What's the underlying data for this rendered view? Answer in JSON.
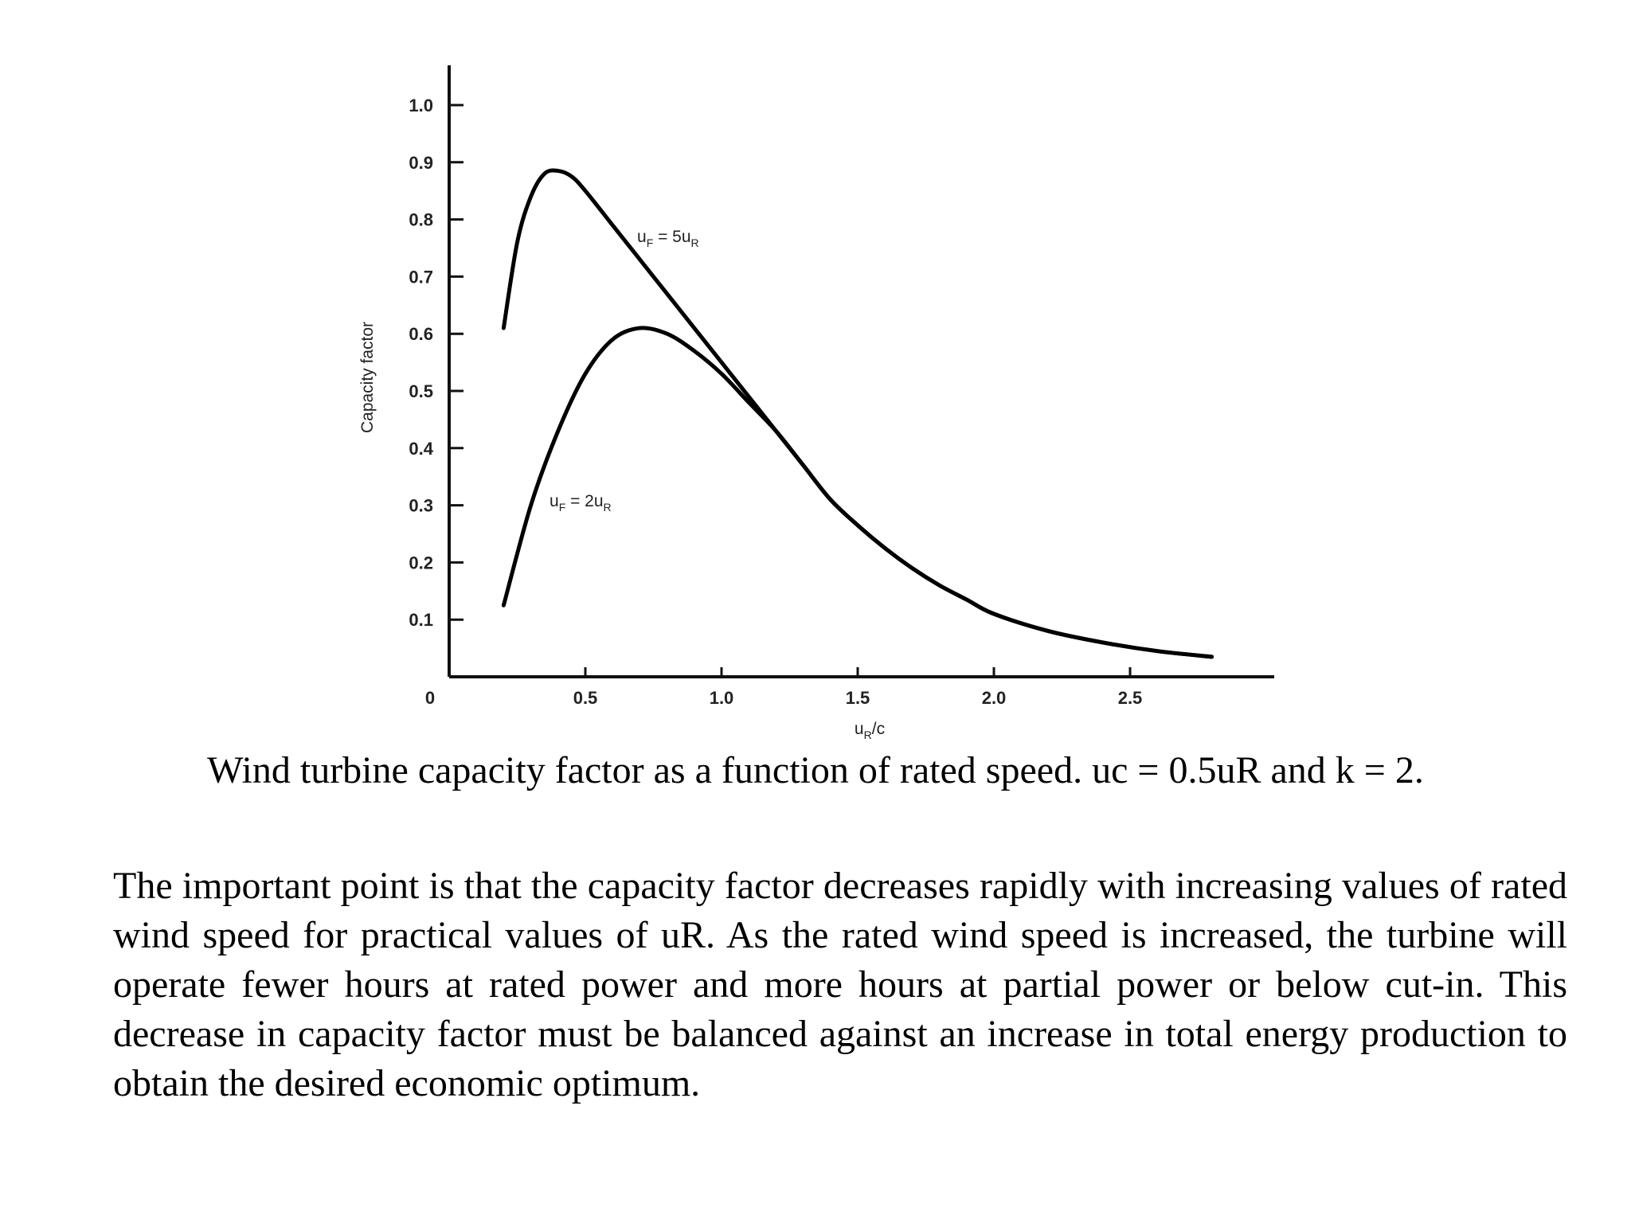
{
  "chart_data": {
    "type": "line",
    "title": "",
    "xlabel": "uR/c",
    "ylabel": "Capacity factor",
    "xlim": [
      0,
      3.0
    ],
    "ylim": [
      0,
      1.05
    ],
    "x_ticks": [
      {
        "value": 0,
        "label": "0"
      },
      {
        "value": 0.5,
        "label": "0.5"
      },
      {
        "value": 1.0,
        "label": "1.0"
      },
      {
        "value": 1.5,
        "label": "1.5"
      },
      {
        "value": 2.0,
        "label": "2.0"
      },
      {
        "value": 2.5,
        "label": "2.5"
      }
    ],
    "y_ticks": [
      {
        "value": 0.1,
        "label": "0.1"
      },
      {
        "value": 0.2,
        "label": "0.2"
      },
      {
        "value": 0.3,
        "label": "0.3"
      },
      {
        "value": 0.4,
        "label": "0.4"
      },
      {
        "value": 0.5,
        "label": "0.5"
      },
      {
        "value": 0.6,
        "label": "0.6"
      },
      {
        "value": 0.7,
        "label": "0.7"
      },
      {
        "value": 0.8,
        "label": "0.8"
      },
      {
        "value": 0.9,
        "label": "0.9"
      },
      {
        "value": 1.0,
        "label": "1.0"
      }
    ],
    "grid": false,
    "series": [
      {
        "name": "uF = 5uR",
        "label_main": "u",
        "label_sub1": "F",
        "label_mid": " = 5u",
        "label_sub2": "R",
        "points": [
          [
            0.2,
            0.61
          ],
          [
            0.25,
            0.76
          ],
          [
            0.3,
            0.84
          ],
          [
            0.35,
            0.88
          ],
          [
            0.4,
            0.885
          ],
          [
            0.45,
            0.875
          ],
          [
            0.5,
            0.85
          ],
          [
            0.6,
            0.79
          ],
          [
            0.7,
            0.73
          ],
          [
            0.8,
            0.67
          ],
          [
            0.9,
            0.61
          ],
          [
            1.0,
            0.55
          ],
          [
            1.1,
            0.49
          ],
          [
            1.2,
            0.43
          ],
          [
            1.3,
            0.37
          ],
          [
            1.4,
            0.31
          ],
          [
            1.5,
            0.265
          ],
          [
            1.6,
            0.225
          ],
          [
            1.7,
            0.19
          ],
          [
            1.8,
            0.16
          ],
          [
            1.9,
            0.135
          ],
          [
            2.0,
            0.11
          ],
          [
            2.2,
            0.08
          ],
          [
            2.4,
            0.06
          ],
          [
            2.6,
            0.045
          ],
          [
            2.8,
            0.035
          ]
        ]
      },
      {
        "name": "uF = 2uR",
        "label_main": "u",
        "label_sub1": "F",
        "label_mid": " = 2u",
        "label_sub2": "R",
        "points": [
          [
            0.2,
            0.125
          ],
          [
            0.3,
            0.3
          ],
          [
            0.4,
            0.43
          ],
          [
            0.5,
            0.53
          ],
          [
            0.6,
            0.59
          ],
          [
            0.7,
            0.61
          ],
          [
            0.8,
            0.6
          ],
          [
            0.9,
            0.57
          ],
          [
            1.0,
            0.53
          ],
          [
            1.1,
            0.48
          ],
          [
            1.2,
            0.43
          ],
          [
            1.3,
            0.37
          ],
          [
            1.4,
            0.31
          ],
          [
            1.5,
            0.265
          ],
          [
            1.6,
            0.225
          ],
          [
            1.7,
            0.19
          ],
          [
            1.8,
            0.16
          ],
          [
            1.9,
            0.135
          ],
          [
            2.0,
            0.11
          ],
          [
            2.2,
            0.08
          ],
          [
            2.4,
            0.06
          ],
          [
            2.6,
            0.045
          ],
          [
            2.8,
            0.035
          ]
        ]
      }
    ]
  },
  "caption": "Wind turbine capacity factor as a function of rated speed. uc = 0.5uR and k = 2.",
  "paragraph": "The important point is that the capacity factor decreases rapidly with increasing values of rated wind speed for practical values of uR. As the rated wind speed is increased, the turbine will operate fewer hours at rated power and more hours at partial power or below cut-in. This decrease in capacity factor must be balanced against an increase in total energy production to obtain the desired economic optimum."
}
